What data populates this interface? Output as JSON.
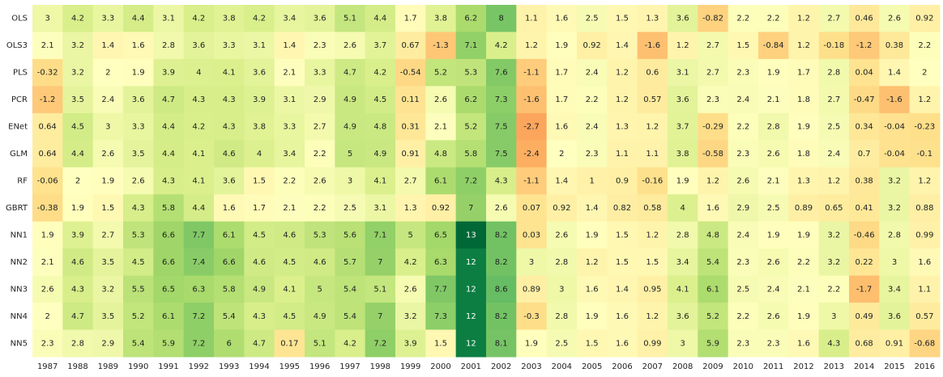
{
  "chart_data": {
    "type": "heatmap",
    "x": [
      1987,
      1988,
      1989,
      1990,
      1991,
      1992,
      1993,
      1994,
      1995,
      1996,
      1997,
      1998,
      1999,
      2000,
      2001,
      2002,
      2003,
      2004,
      2005,
      2006,
      2007,
      2008,
      2009,
      2010,
      2011,
      2012,
      2013,
      2014,
      2015,
      2016
    ],
    "rows": [
      "OLS",
      "OLS3",
      "PLS",
      "PCR",
      "ENet",
      "GLM",
      "RF",
      "GBRT",
      "NN1",
      "NN2",
      "NN3",
      "NN4",
      "NN5"
    ],
    "values": [
      [
        3,
        4.2,
        3.3,
        4.4,
        3.1,
        4.2,
        3.8,
        4.2,
        3.4,
        3.6,
        5.1,
        4.4,
        1.7,
        3.8,
        6.2,
        8,
        1.1,
        1.6,
        2.5,
        1.5,
        1.3,
        3.6,
        -0.82,
        2.2,
        2.2,
        1.2,
        2.7,
        0.46,
        2.6,
        0.92
      ],
      [
        2.1,
        3.2,
        1.4,
        1.6,
        2.8,
        3.6,
        3.3,
        3.1,
        1.4,
        2.3,
        2.6,
        3.7,
        0.67,
        -1.3,
        7.1,
        4.2,
        1.2,
        1.9,
        0.92,
        1.4,
        -1.6,
        1.2,
        2.7,
        1.5,
        -0.84,
        1.2,
        -0.18,
        -1.2,
        0.38,
        2.2
      ],
      [
        -0.32,
        3.2,
        2,
        1.9,
        3.9,
        4,
        4.1,
        3.6,
        2.1,
        3.3,
        4.7,
        4.2,
        -0.54,
        5.2,
        5.3,
        7.6,
        -1.1,
        1.7,
        2.4,
        1.2,
        0.6,
        3.1,
        2.7,
        2.3,
        1.9,
        1.7,
        2.8,
        0.04,
        1.4,
        2
      ],
      [
        -1.2,
        3.5,
        2.4,
        3.6,
        4.7,
        4.3,
        4.3,
        3.9,
        3.1,
        2.9,
        4.9,
        4.5,
        0.11,
        2.6,
        6.2,
        7.3,
        -1.6,
        1.7,
        2.2,
        1.2,
        0.57,
        3.6,
        2.3,
        2.4,
        2.1,
        1.8,
        2.7,
        -0.47,
        -1.6,
        1.2
      ],
      [
        0.64,
        4.5,
        3,
        3.3,
        4.4,
        4.2,
        4.3,
        3.8,
        3.3,
        2.7,
        4.9,
        4.8,
        0.31,
        2.1,
        5.2,
        7.5,
        -2.7,
        1.6,
        2.4,
        1.3,
        1.2,
        3.7,
        -0.29,
        2.2,
        2.8,
        1.9,
        2.5,
        0.34,
        -0.04,
        -0.23
      ],
      [
        0.64,
        4.4,
        2.6,
        3.5,
        4.4,
        4.1,
        4.6,
        4,
        3.4,
        2.2,
        5,
        4.9,
        0.91,
        4.8,
        5.8,
        7.5,
        -2.4,
        2,
        2.3,
        1.1,
        1.1,
        3.8,
        -0.58,
        2.3,
        2.6,
        1.8,
        2.4,
        0.7,
        -0.04,
        -0.1
      ],
      [
        -0.06,
        2,
        1.9,
        2.6,
        4.3,
        4.1,
        3.6,
        1.5,
        2.2,
        2.6,
        3,
        4.1,
        2.7,
        6.1,
        7.2,
        4.3,
        -1.1,
        1.4,
        1,
        0.9,
        -0.16,
        1.9,
        1.2,
        2.6,
        2.1,
        1.3,
        1.2,
        0.38,
        3.2,
        1.2
      ],
      [
        -0.38,
        1.9,
        1.5,
        4.3,
        5.8,
        4.4,
        1.6,
        1.7,
        2.1,
        2.2,
        2.5,
        3.1,
        1.3,
        0.92,
        7,
        2.6,
        0.07,
        0.92,
        1.4,
        0.82,
        0.58,
        4,
        1.6,
        2.9,
        2.5,
        0.89,
        0.65,
        0.41,
        3.2,
        0.88
      ],
      [
        1.9,
        3.9,
        2.7,
        5.3,
        6.6,
        7.7,
        6.1,
        4.5,
        4.6,
        5.3,
        5.6,
        7.1,
        5,
        6.5,
        13,
        8.2,
        0.03,
        2.6,
        1.9,
        1.5,
        1.2,
        2.8,
        4.8,
        2.4,
        1.9,
        1.9,
        3.2,
        -0.46,
        2.8,
        0.99
      ],
      [
        2.1,
        4.6,
        3.5,
        4.5,
        6.6,
        7.4,
        6.6,
        4.6,
        4.5,
        4.6,
        5.7,
        7,
        4.2,
        6.3,
        12,
        8.2,
        3,
        2.8,
        1.2,
        1.5,
        1.5,
        3.4,
        5.4,
        2.3,
        2.6,
        2.2,
        3.2,
        0.22,
        3,
        1.6
      ],
      [
        2.6,
        4.3,
        3.2,
        5.5,
        6.5,
        6.3,
        5.8,
        4.9,
        4.1,
        5,
        5.4,
        5.1,
        2.6,
        7.7,
        12,
        8.6,
        0.89,
        3,
        1.6,
        1.4,
        0.95,
        4.1,
        6.1,
        2.5,
        2.4,
        2.1,
        2.2,
        -1.7,
        3.4,
        1.1
      ],
      [
        2,
        4.7,
        3.5,
        5.2,
        6.1,
        7.2,
        5.4,
        4.3,
        4.5,
        4.9,
        5.4,
        7,
        3.2,
        7.3,
        12,
        8.2,
        -0.3,
        2.8,
        1.9,
        1.6,
        1.2,
        3.6,
        5.2,
        2.2,
        2.6,
        1.9,
        3,
        0.49,
        3.6,
        0.57
      ],
      [
        2.3,
        2.8,
        2.9,
        5.4,
        5.9,
        7.2,
        6,
        4.7,
        0.17,
        5.1,
        4.2,
        7.2,
        3.9,
        1.5,
        12,
        8.1,
        1.9,
        2.5,
        1.5,
        1.6,
        0.99,
        3,
        5.9,
        2.3,
        2.3,
        1.6,
        4.3,
        0.68,
        0.91,
        -0.68
      ]
    ],
    "colormap": [
      "#a50026",
      "#d73027",
      "#f46d43",
      "#fdae61",
      "#fee08b",
      "#ffffbf",
      "#d9ef8b",
      "#a6d96a",
      "#66bd63",
      "#1a9850",
      "#006837"
    ],
    "color_range": [
      -9,
      13
    ]
  }
}
